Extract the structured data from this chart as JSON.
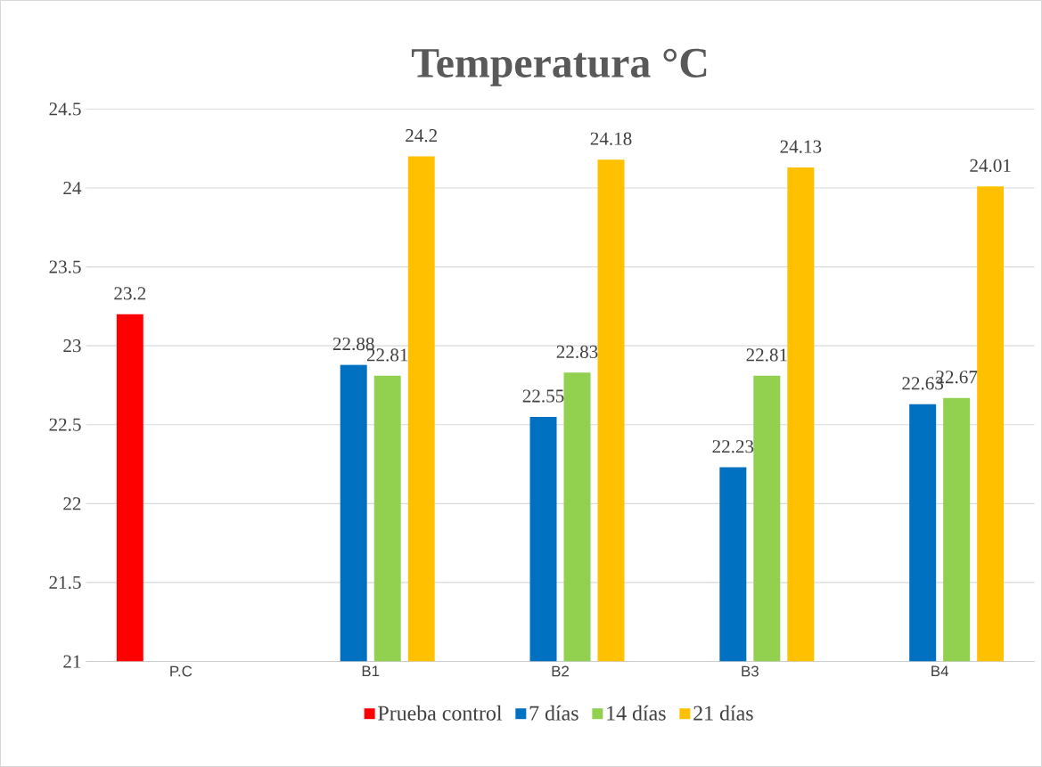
{
  "chart_data": {
    "type": "bar",
    "title": "Temperatura °C",
    "categories": [
      "P.C",
      "B1",
      "B2",
      "B3",
      "B4"
    ],
    "series": [
      {
        "name": "Prueba control",
        "color": "#ff0000",
        "values": [
          23.2,
          null,
          null,
          null,
          null
        ]
      },
      {
        "name": "7 días",
        "color": "#0070c0",
        "values": [
          null,
          22.88,
          22.55,
          22.23,
          22.63
        ]
      },
      {
        "name": "14 días",
        "color": "#92d050",
        "values": [
          null,
          22.81,
          22.83,
          22.81,
          22.67
        ]
      },
      {
        "name": "21 días",
        "color": "#ffc000",
        "values": [
          null,
          24.2,
          24.18,
          24.13,
          24.01
        ]
      }
    ],
    "ylim": [
      21,
      24.5
    ],
    "yticks": [
      21,
      21.5,
      22,
      22.5,
      23,
      23.5,
      24,
      24.5
    ],
    "grid": "y",
    "legend": "bottom",
    "data_labels": true
  }
}
